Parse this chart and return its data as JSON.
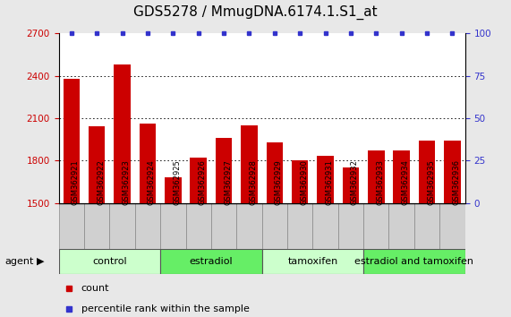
{
  "title": "GDS5278 / MmugDNA.6174.1.S1_at",
  "samples": [
    "GSM362921",
    "GSM362922",
    "GSM362923",
    "GSM362924",
    "GSM362925",
    "GSM362926",
    "GSM362927",
    "GSM362928",
    "GSM362929",
    "GSM362930",
    "GSM362931",
    "GSM362932",
    "GSM362933",
    "GSM362934",
    "GSM362935",
    "GSM362936"
  ],
  "counts": [
    2380,
    2045,
    2480,
    2060,
    1680,
    1820,
    1960,
    2050,
    1930,
    1800,
    1830,
    1750,
    1870,
    1870,
    1940,
    1940
  ],
  "bar_color": "#cc0000",
  "dot_color": "#3333cc",
  "ylim_left": [
    1500,
    2700
  ],
  "ylim_right": [
    0,
    100
  ],
  "yticks_left": [
    1500,
    1800,
    2100,
    2400,
    2700
  ],
  "yticks_right": [
    0,
    25,
    50,
    75,
    100
  ],
  "groups": [
    {
      "label": "control",
      "start": 0,
      "end": 4,
      "color": "#ccffcc"
    },
    {
      "label": "estradiol",
      "start": 4,
      "end": 8,
      "color": "#66ee66"
    },
    {
      "label": "tamoxifen",
      "start": 8,
      "end": 12,
      "color": "#ccffcc"
    },
    {
      "label": "estradiol and tamoxifen",
      "start": 12,
      "end": 16,
      "color": "#66ee66"
    }
  ],
  "agent_label": "agent",
  "legend_count_label": "count",
  "legend_pct_label": "percentile rank within the sample",
  "bg_color": "#e8e8e8",
  "plot_bg_color": "#ffffff",
  "tick_color_left": "#cc0000",
  "tick_color_right": "#3333cc",
  "xtick_bg": "#d0d0d0",
  "title_fontsize": 11,
  "axis_fontsize": 7.5,
  "xtick_fontsize": 6,
  "group_fontsize": 8,
  "legend_fontsize": 8
}
